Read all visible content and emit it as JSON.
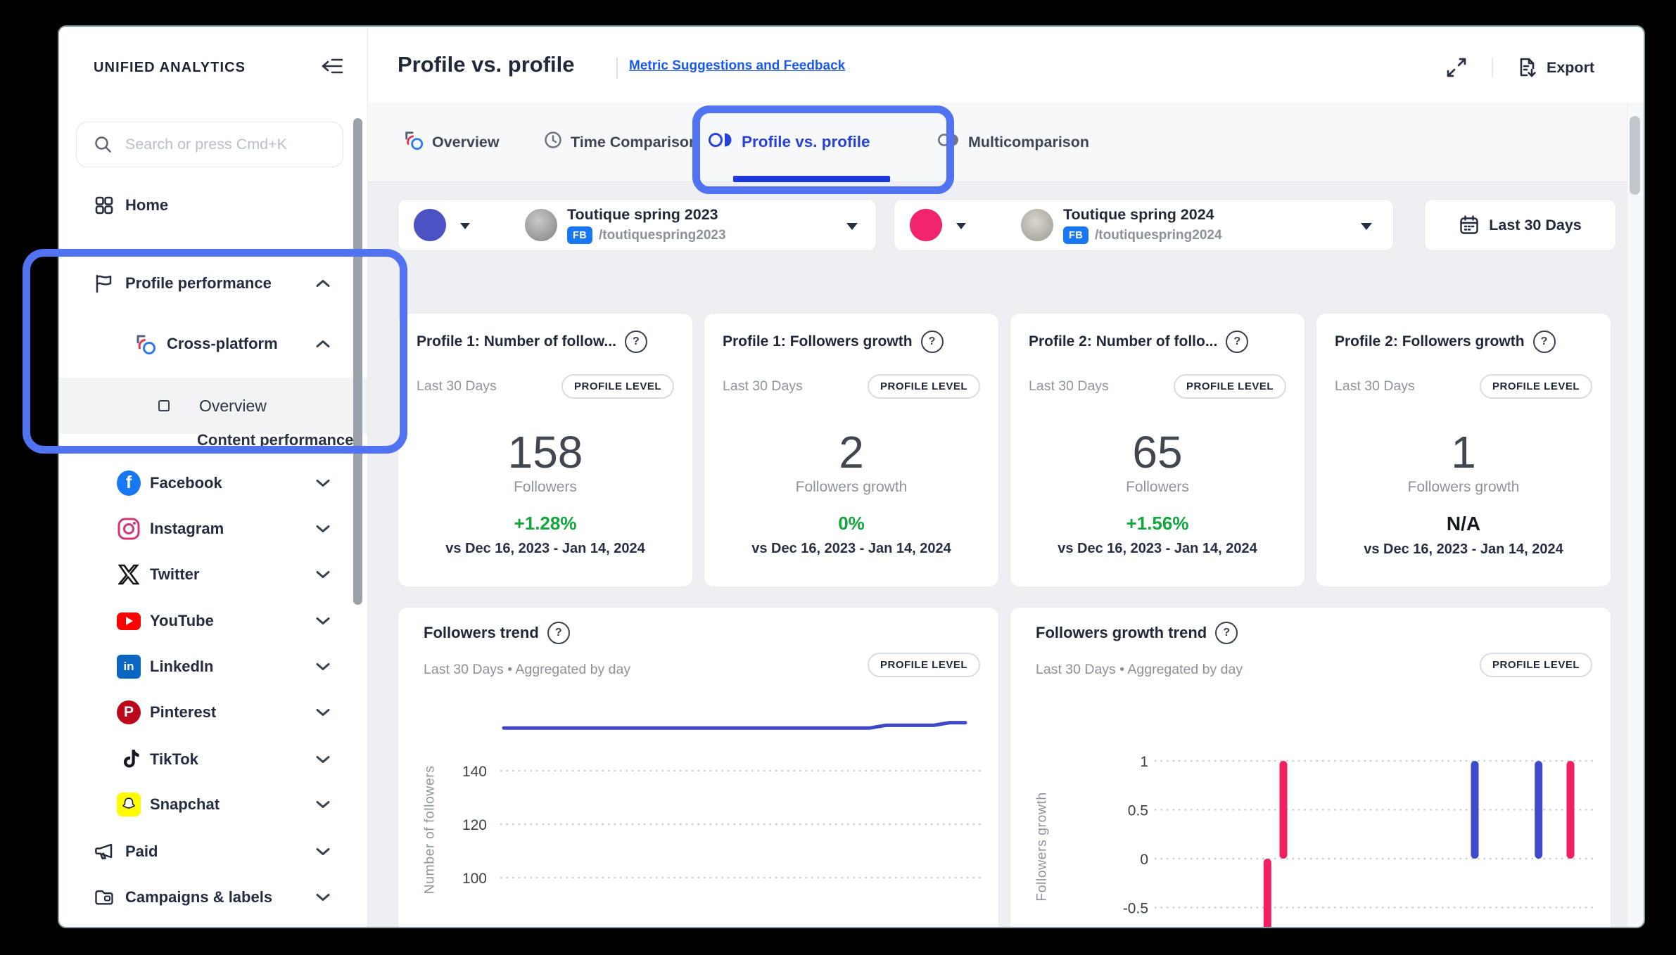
{
  "colors": {
    "annotation": "#5273f1",
    "accent_blue": "#2742d8",
    "link_blue": "#1b59f3",
    "positive_green": "#12a63d",
    "facebook_badge": "#1877f2",
    "profile1": "#4a52c4",
    "profile2": "#f0256d"
  },
  "icons": {
    "help_glyph": "?",
    "facebook_glyph": "f",
    "linkedin_glyph": "in",
    "pinterest_glyph": "P"
  },
  "sidebar": {
    "brand": "UNIFIED ANALYTICS",
    "search_placeholder": "Search or press Cmd+K",
    "items": {
      "home": "Home",
      "profile_performance": "Profile performance",
      "cross_platform": "Cross-platform",
      "overview": "Overview",
      "content_performance": "Content performance",
      "facebook": "Facebook",
      "instagram": "Instagram",
      "twitter": "Twitter",
      "youtube": "YouTube",
      "linkedin": "LinkedIn",
      "pinterest": "Pinterest",
      "tiktok": "TikTok",
      "snapchat": "Snapchat",
      "paid": "Paid",
      "campaigns": "Campaigns & labels"
    }
  },
  "header": {
    "title": "Profile vs. profile",
    "link": "Metric Suggestions and Feedback",
    "export_label": "Export"
  },
  "tabs": {
    "overview": "Overview",
    "time_comparison": "Time Comparison",
    "profile_vs_profile": "Profile vs. profile",
    "multicomparison": "Multicomparison"
  },
  "filters": {
    "profile1": {
      "name": "Toutique spring 2023",
      "network": "FB",
      "handle": "/toutiquespring2023",
      "color": "#4a52c4"
    },
    "profile2": {
      "name": "Toutique spring 2024",
      "network": "FB",
      "handle": "/toutiquespring2024",
      "color": "#f0256d"
    },
    "date_range": "Last 30 Days"
  },
  "cards": [
    {
      "title": "Profile 1: Number of follow...",
      "period": "Last 30 Days",
      "scope": "PROFILE LEVEL",
      "value": "158",
      "metric": "Followers",
      "delta": "+1.28%",
      "delta_type": "positive",
      "vs": "vs Dec 16, 2023 - Jan 14, 2024"
    },
    {
      "title": "Profile 1: Followers growth",
      "period": "Last 30 Days",
      "scope": "PROFILE LEVEL",
      "value": "2",
      "metric": "Followers growth",
      "delta": "0%",
      "delta_type": "positive",
      "vs": "vs Dec 16, 2023 - Jan 14, 2024"
    },
    {
      "title": "Profile 2: Number of follo...",
      "period": "Last 30 Days",
      "scope": "PROFILE LEVEL",
      "value": "65",
      "metric": "Followers",
      "delta": "+1.56%",
      "delta_type": "positive",
      "vs": "vs Dec 16, 2023 - Jan 14, 2024"
    },
    {
      "title": "Profile 2: Followers growth",
      "period": "Last 30 Days",
      "scope": "PROFILE LEVEL",
      "value": "1",
      "metric": "Followers growth",
      "delta": "N/A",
      "delta_type": "neutral",
      "vs": "vs Dec 16, 2023 - Jan 14, 2024"
    }
  ],
  "charts": {
    "followers_trend": {
      "title": "Followers trend",
      "meta": "Last 30 Days • Aggregated by day",
      "scope": "PROFILE LEVEL",
      "ylabel": "Number of followers"
    },
    "followers_growth_trend": {
      "title": "Followers growth trend",
      "meta": "Last 30 Days • Aggregated by day",
      "scope": "PROFILE LEVEL",
      "ylabel": "Followers growth"
    }
  },
  "chart_data": [
    {
      "type": "line",
      "title": "Followers trend",
      "x_days": 30,
      "ylabel": "Number of followers",
      "yticks": [
        140,
        120,
        100
      ],
      "ylim": [
        95,
        165
      ],
      "grid": "dotted",
      "series": [
        {
          "name": "Toutique spring 2023",
          "color": "#3f49c6",
          "values": [
            156,
            156,
            156,
            156,
            156,
            156,
            156,
            156,
            156,
            156,
            156,
            156,
            156,
            156,
            156,
            156,
            156,
            156,
            156,
            156,
            156,
            156,
            156,
            156,
            157,
            157,
            157,
            157,
            158,
            158
          ]
        }
      ]
    },
    {
      "type": "bar",
      "title": "Followers growth trend",
      "x_days": 30,
      "ylabel": "Followers growth",
      "yticks": [
        1,
        0.5,
        0,
        -0.5
      ],
      "ylim": [
        -0.8,
        1.1
      ],
      "grid": "dotted",
      "bars": [
        {
          "day": 10,
          "value": -1,
          "series": "Toutique spring 2024",
          "color": "#ef1f62"
        },
        {
          "day": 11,
          "value": 1,
          "series": "Toutique spring 2024",
          "color": "#ef1f62"
        },
        {
          "day": 23,
          "value": 1,
          "series": "Toutique spring 2023",
          "color": "#4049c8"
        },
        {
          "day": 27,
          "value": 1,
          "series": "Toutique spring 2023",
          "color": "#4049c8"
        },
        {
          "day": 29,
          "value": 1,
          "series": "Toutique spring 2024",
          "color": "#ef1f62"
        }
      ]
    }
  ]
}
